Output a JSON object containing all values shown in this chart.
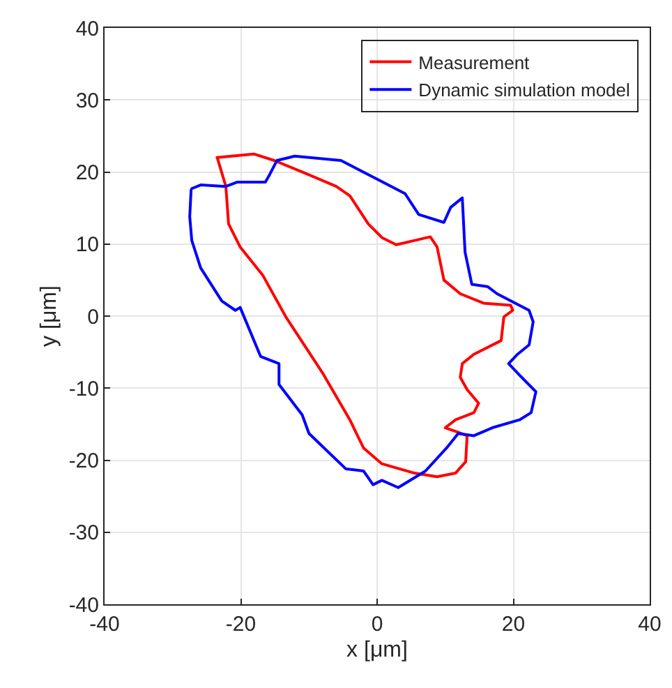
{
  "chart_data": {
    "type": "line",
    "xlabel": "x [μm]",
    "ylabel": "y [μm]",
    "xlim": [
      -40,
      40
    ],
    "ylim": [
      -40,
      40
    ],
    "xticks": [
      -40,
      -20,
      0,
      20,
      40
    ],
    "yticks": [
      -40,
      -30,
      -20,
      -10,
      0,
      10,
      20,
      30,
      40
    ],
    "grid": true,
    "legend": "top right",
    "line_style": "solid",
    "marker": "none",
    "series": [
      {
        "name": "Measurement",
        "color": "#ff0000",
        "x": [
          -23.5,
          -18.1,
          -15.1,
          -10.7,
          -6.0,
          -4.0,
          -1.3,
          0.7,
          2.8,
          5.5,
          7.8,
          8.8,
          9.8,
          12.2,
          15.6,
          19.6,
          19.9,
          18.6,
          18.2,
          14.2,
          12.5,
          12.2,
          13.2,
          14.9,
          14.2,
          11.5,
          10.0,
          11.5,
          13.2,
          13.0,
          11.5,
          8.8,
          5.5,
          0.7,
          -2.0,
          -4.0,
          -8.0,
          -10.7,
          -13.4,
          -16.8,
          -20.1,
          -21.8,
          -22.2,
          -23.4
        ],
        "values": [
          22.0,
          22.5,
          21.6,
          19.9,
          18.0,
          16.7,
          12.8,
          10.9,
          9.9,
          10.5,
          11.0,
          9.6,
          5.0,
          3.1,
          1.8,
          1.5,
          0.8,
          -0.1,
          -3.4,
          -5.3,
          -6.6,
          -8.5,
          -10.2,
          -12.1,
          -13.4,
          -14.4,
          -15.5,
          -16.0,
          -16.6,
          -20.2,
          -21.8,
          -22.3,
          -21.8,
          -20.5,
          -18.3,
          -14.4,
          -7.9,
          -4.0,
          -0.1,
          5.7,
          9.6,
          12.8,
          18.0,
          21.8
        ]
      },
      {
        "name": "Dynamic simulation model",
        "color": "#0000ff",
        "x": [
          -27.2,
          -25.9,
          -22.2,
          -20.5,
          -16.4,
          -15.8,
          -14.7,
          -12.1,
          -5.3,
          -0.6,
          4.1,
          6.1,
          9.8,
          10.8,
          12.5,
          12.9,
          13.9,
          16.2,
          17.6,
          22.3,
          22.9,
          22.3,
          20.6,
          19.3,
          20.9,
          23.3,
          22.6,
          20.9,
          16.9,
          14.2,
          11.9,
          10.2,
          7.1,
          3.1,
          0.7,
          -0.6,
          -2.0,
          -4.6,
          -10.0,
          -11.0,
          -14.4,
          -14.4,
          -17.1,
          -20.1,
          -20.8,
          -22.8,
          -25.9,
          -27.2,
          -27.5,
          -27.3
        ],
        "values": [
          17.7,
          18.2,
          18.0,
          18.6,
          18.6,
          19.6,
          21.6,
          22.2,
          21.6,
          19.3,
          17.0,
          14.1,
          13.0,
          15.1,
          16.4,
          8.9,
          4.4,
          4.1,
          3.1,
          0.8,
          -0.8,
          -4.0,
          -5.3,
          -6.6,
          -8.2,
          -10.5,
          -13.4,
          -14.4,
          -15.5,
          -16.6,
          -16.3,
          -18.3,
          -21.5,
          -23.8,
          -22.8,
          -23.4,
          -21.5,
          -21.2,
          -16.3,
          -13.7,
          -9.5,
          -6.6,
          -5.6,
          1.2,
          0.8,
          2.1,
          6.7,
          10.5,
          13.8,
          17.5
        ]
      }
    ]
  }
}
